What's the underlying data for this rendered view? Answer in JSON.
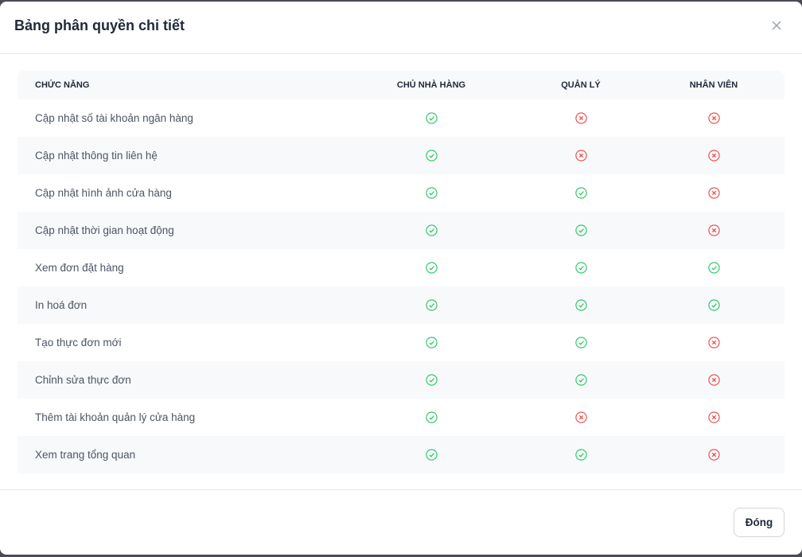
{
  "dialog": {
    "title": "Bảng phân quyền chi tiết",
    "close_label": "Đóng"
  },
  "colors": {
    "allowed": "#22c55e",
    "denied": "#ef4444"
  },
  "table": {
    "headers": [
      "CHỨC NĂNG",
      "CHỦ NHÀ HÀNG",
      "QUẢN LÝ",
      "NHÂN VIÊN"
    ],
    "rows": [
      {
        "feature": "Cập nhật số tài khoản ngân hàng",
        "perms": [
          true,
          false,
          false
        ]
      },
      {
        "feature": "Cập nhật thông tin liên hệ",
        "perms": [
          true,
          false,
          false
        ]
      },
      {
        "feature": "Cập nhật hình ảnh cửa hàng",
        "perms": [
          true,
          true,
          false
        ]
      },
      {
        "feature": "Cập nhật thời gian hoạt động",
        "perms": [
          true,
          true,
          false
        ]
      },
      {
        "feature": "Xem đơn đặt hàng",
        "perms": [
          true,
          true,
          true
        ]
      },
      {
        "feature": "In hoá đơn",
        "perms": [
          true,
          true,
          true
        ]
      },
      {
        "feature": "Tạo thực đơn mới",
        "perms": [
          true,
          true,
          false
        ]
      },
      {
        "feature": "Chỉnh sửa thực đơn",
        "perms": [
          true,
          true,
          false
        ]
      },
      {
        "feature": "Thêm tài khoản quản lý cửa hàng",
        "perms": [
          true,
          false,
          false
        ]
      },
      {
        "feature": "Xem trang tổng quan",
        "perms": [
          true,
          true,
          false
        ]
      }
    ]
  }
}
